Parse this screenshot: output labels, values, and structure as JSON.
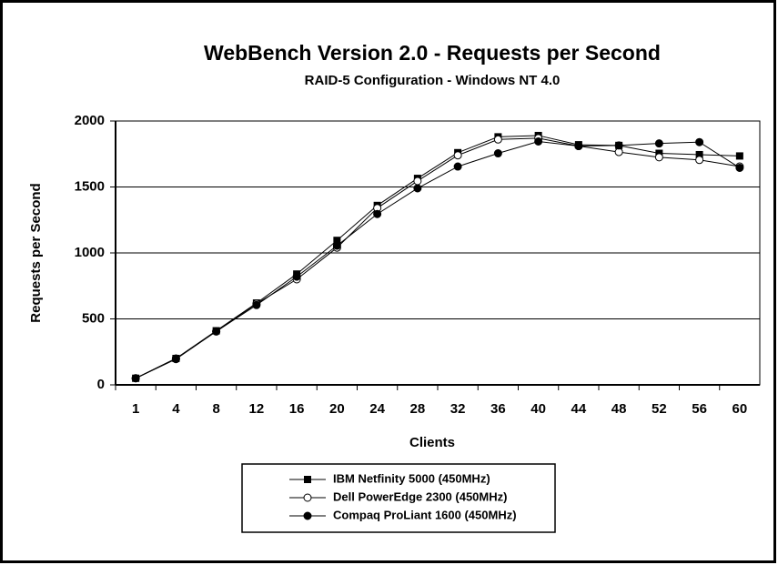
{
  "chart_data": {
    "type": "line",
    "title": "WebBench Version 2.0 - Requests per Second",
    "subtitle": "RAID-5 Configuration - Windows NT 4.0",
    "x_label": "Clients",
    "y_label": "Requests per Second",
    "categories": [
      "1",
      "4",
      "8",
      "12",
      "16",
      "20",
      "24",
      "28",
      "32",
      "36",
      "40",
      "44",
      "48",
      "52",
      "56",
      "60"
    ],
    "series": [
      {
        "name": "IBM Netfinity 5000 (450MHz)",
        "color": "#000000",
        "marker": "square",
        "values": [
          50,
          200,
          410,
          620,
          840,
          1095,
          1360,
          1565,
          1760,
          1880,
          1890,
          1820,
          1815,
          1755,
          1745,
          1735
        ]
      },
      {
        "name": "Dell PowerEdge 2300 (450MHz)",
        "color": "#000000",
        "marker": "open-circle",
        "values": [
          50,
          200,
          405,
          615,
          800,
          1040,
          1340,
          1545,
          1740,
          1860,
          1870,
          1810,
          1765,
          1725,
          1705,
          1655
        ]
      },
      {
        "name": "Compaq ProLiant 1600 (450MHz)",
        "color": "#000000",
        "marker": "circle",
        "values": [
          50,
          195,
          405,
          605,
          820,
          1055,
          1295,
          1490,
          1655,
          1755,
          1845,
          1810,
          1815,
          1830,
          1840,
          1645
        ]
      }
    ],
    "ylim": [
      0,
      2000
    ],
    "yticks": [
      0,
      500,
      1000,
      1500,
      2000
    ],
    "grid": true,
    "legend": "bottom"
  }
}
